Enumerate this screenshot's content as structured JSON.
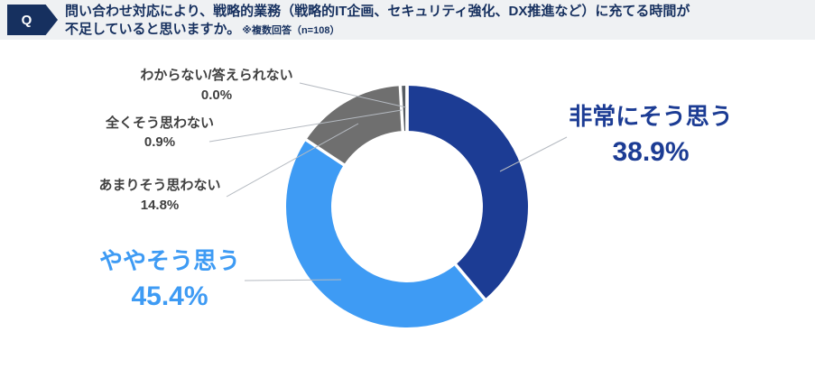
{
  "header": {
    "badge": "Q",
    "question_line1": "問い合わせ対応により、戦略的業務（戦略的IT企画、セキュリティ強化、DX推進など）に充てる時間が",
    "question_line2": "不足していると思いますか。",
    "note": "※複数回答（n=108）"
  },
  "colors": {
    "header_bg": "#eff1f3",
    "header_text": "#16305f",
    "badge_bg": "#16305f",
    "dark_blue": "#1c3c94",
    "light_blue": "#3e9bf4",
    "gray": "#6f6f6f",
    "dark_gray_sliver": "#565c63",
    "leader_line": "#b5bac1",
    "small_label_text": "#404040"
  },
  "chart_data": {
    "type": "pie",
    "subtype": "donut",
    "n": 108,
    "direction": "clockwise",
    "start_angle_deg": 0,
    "legend_position": "outside-callouts",
    "segments": [
      {
        "label": "非常にそう思う",
        "value": 38.9,
        "display": "38.9%",
        "color": "#1c3c94"
      },
      {
        "label": "ややそう思う",
        "value": 45.4,
        "display": "45.4%",
        "color": "#3e9bf4"
      },
      {
        "label": "あまりそう思わない",
        "value": 14.8,
        "display": "14.8%",
        "color": "#6f6f6f"
      },
      {
        "label": "全くそう思わない",
        "value": 0.9,
        "display": "0.9%",
        "color": "#565c63"
      },
      {
        "label": "わからない/答えられない",
        "value": 0.0,
        "display": "0.0%",
        "color": "#c0c0c0"
      }
    ]
  }
}
